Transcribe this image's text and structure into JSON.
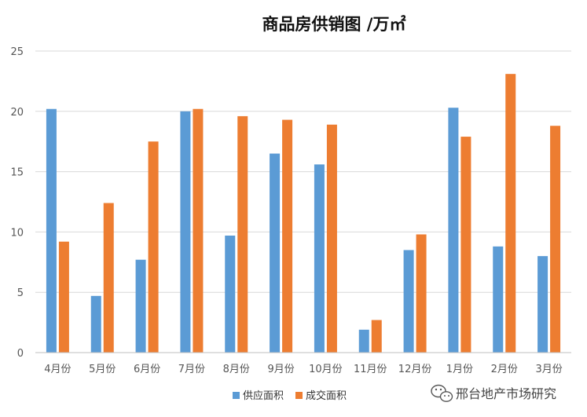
{
  "chart_data": {
    "type": "bar",
    "title": "商品房供销图 /万㎡",
    "xlabel": "",
    "ylabel": "",
    "ylim": [
      0,
      25
    ],
    "yticks": [
      0,
      5,
      10,
      15,
      20,
      25
    ],
    "grid": true,
    "legend_position": "bottom",
    "categories": [
      "4月份",
      "5月份",
      "6月份",
      "7月份",
      "8月份",
      "9月份",
      "10月份",
      "11月份",
      "12月份",
      "1月份",
      "2月份",
      "3月份"
    ],
    "series": [
      {
        "name": "供应面积",
        "color": "#5B9BD5",
        "values": [
          20.2,
          4.7,
          7.7,
          20.0,
          9.7,
          16.5,
          15.6,
          1.9,
          8.5,
          20.3,
          8.8,
          8.0
        ]
      },
      {
        "name": "成交面积",
        "color": "#ED7D31",
        "values": [
          9.2,
          12.4,
          17.5,
          20.2,
          19.6,
          19.3,
          18.9,
          2.7,
          9.8,
          17.9,
          23.1,
          18.8
        ]
      }
    ]
  },
  "watermark": {
    "text": "邢台地产市场研究",
    "icon": "wechat-icon"
  }
}
